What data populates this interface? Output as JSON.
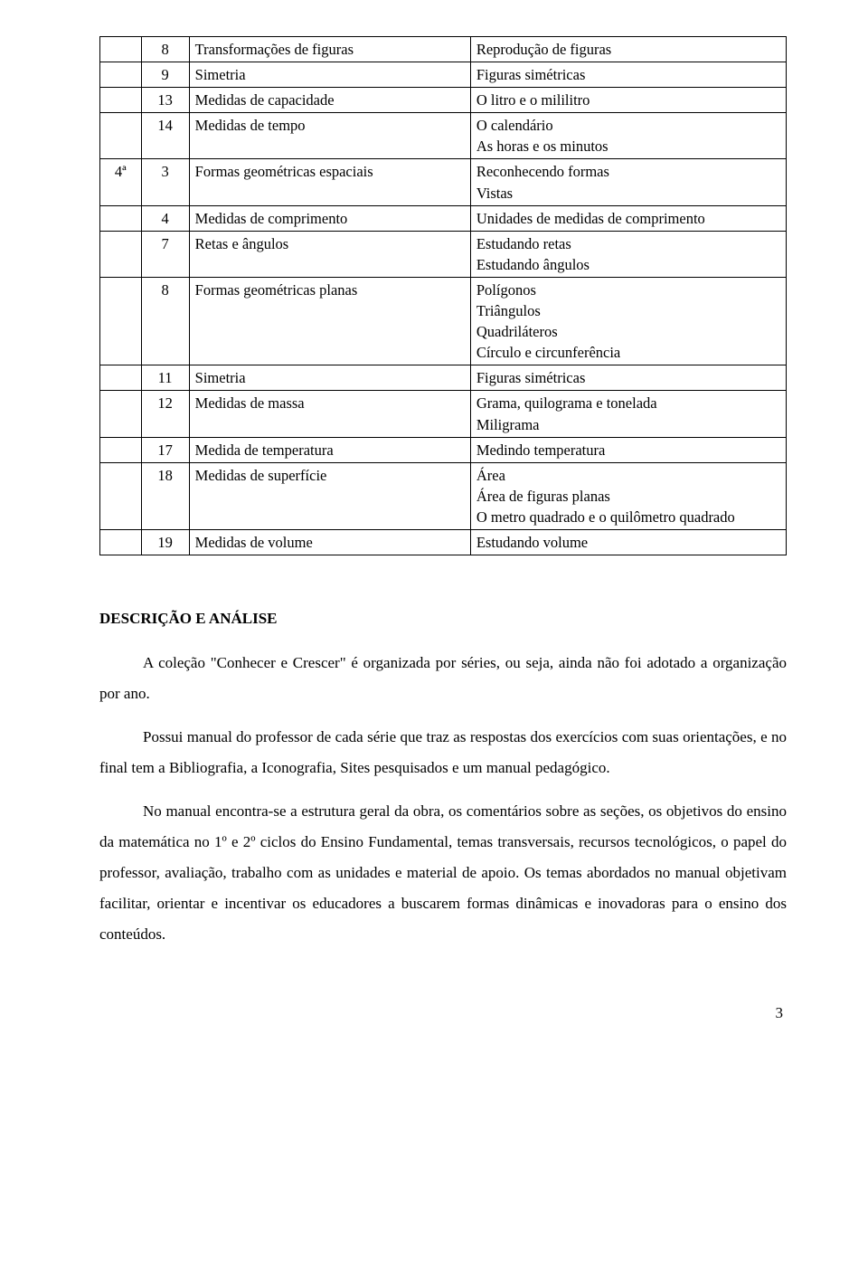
{
  "table": {
    "rows": [
      {
        "a": "",
        "b": "8",
        "c": "Transformações de figuras",
        "d": "Reprodução de figuras"
      },
      {
        "a": "",
        "b": "9",
        "c": "Simetria",
        "d": "Figuras simétricas"
      },
      {
        "a": "",
        "b": "13",
        "c": "Medidas de capacidade",
        "d": "O litro e o mililitro"
      },
      {
        "a": "",
        "b": "14",
        "c": "Medidas de tempo",
        "d": "O calendário\nAs horas e os minutos"
      },
      {
        "a": "4ª",
        "b": "3",
        "c": "Formas geométricas espaciais",
        "d": "Reconhecendo formas\nVistas"
      },
      {
        "a": "",
        "b": "4",
        "c": "Medidas de comprimento",
        "d": "Unidades de medidas de comprimento",
        "d_justify": true
      },
      {
        "a": "",
        "b": "7",
        "c": "Retas e ângulos",
        "d": "Estudando retas\nEstudando ângulos"
      },
      {
        "a": "",
        "b": "8",
        "c": "Formas geométricas planas",
        "d": "Polígonos\nTriângulos\nQuadriláteros\nCírculo e circunferência"
      },
      {
        "a": "",
        "b": "11",
        "c": "Simetria",
        "d": "Figuras simétricas"
      },
      {
        "a": "",
        "b": "12",
        "c": "Medidas de massa",
        "d": "Grama, quilograma e tonelada\nMiligrama"
      },
      {
        "a": "",
        "b": "17",
        "c": "Medida de temperatura",
        "d": "Medindo temperatura"
      },
      {
        "a": "",
        "b": "18",
        "c": "Medidas de superfície",
        "d": "Área\nÁrea de figuras planas\nO metro quadrado e o quilômetro quadrado",
        "d_justify": true,
        "d_multiline": true
      },
      {
        "a": "",
        "b": "19",
        "c": "Medidas de volume",
        "d": "Estudando volume"
      }
    ]
  },
  "sectionHeading": "DESCRIÇÃO E ANÁLISE",
  "paragraphs": [
    "A coleção \"Conhecer e Crescer\" é organizada por séries, ou seja, ainda não foi adotado a organização por ano.",
    "Possui manual do professor de cada série que traz as respostas dos exercícios com suas orientações, e no final tem a Bibliografia, a Iconografia, Sites pesquisados e um manual pedagógico.",
    "No manual encontra-se a estrutura geral da obra, os comentários sobre as seções, os objetivos do ensino da matemática no 1º e 2º ciclos do Ensino Fundamental, temas transversais, recursos tecnológicos, o papel do professor, avaliação, trabalho com as unidades e material de apoio. Os temas abordados no manual objetivam facilitar, orientar e incentivar os educadores a buscarem formas dinâmicas e inovadoras para o ensino dos conteúdos."
  ],
  "pageNumber": "3"
}
